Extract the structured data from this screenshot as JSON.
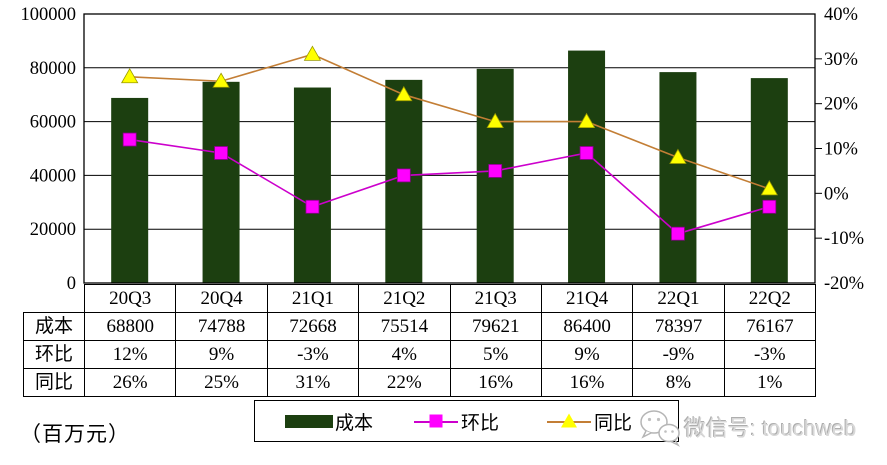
{
  "unit_label": "（百万元）",
  "watermark": {
    "icon": "wechat-icon",
    "text": "微信号: touchweb"
  },
  "legend": {
    "position": "bottom",
    "items": [
      {
        "label": "成本",
        "type": "bar",
        "color": "#1c3f10"
      },
      {
        "label": "环比",
        "type": "line-square",
        "line_color": "#cc00cc",
        "marker_color": "#ff00ff"
      },
      {
        "label": "同比",
        "type": "line-triangle",
        "line_color": "#c37e35",
        "marker_color": "#ffff00"
      }
    ]
  },
  "table": {
    "col_headers": [
      "20Q3",
      "20Q4",
      "21Q1",
      "21Q2",
      "21Q3",
      "21Q4",
      "22Q1",
      "22Q2"
    ],
    "rows": [
      {
        "header": "成本",
        "values": [
          "68800",
          "74788",
          "72668",
          "75514",
          "79621",
          "86400",
          "78397",
          "76167"
        ]
      },
      {
        "header": "环比",
        "values": [
          "12%",
          "9%",
          "-3%",
          "4%",
          "5%",
          "9%",
          "-9%",
          "-3%"
        ]
      },
      {
        "header": "同比",
        "values": [
          "26%",
          "25%",
          "31%",
          "22%",
          "16%",
          "16%",
          "8%",
          "1%"
        ]
      }
    ]
  },
  "chart_data": {
    "type": "combo",
    "categories": [
      "20Q3",
      "20Q4",
      "21Q1",
      "21Q2",
      "21Q3",
      "21Q4",
      "22Q1",
      "22Q2"
    ],
    "series": [
      {
        "name": "成本",
        "chart": "bar",
        "axis": "left",
        "color": "#1c3f10",
        "values": [
          68800,
          74788,
          72668,
          75514,
          79621,
          86400,
          78397,
          76167
        ]
      },
      {
        "name": "环比",
        "chart": "line",
        "axis": "right",
        "marker": "square",
        "line_color": "#cc00cc",
        "marker_color": "#ff00ff",
        "marker_stroke": "#8b008b",
        "values": [
          12,
          9,
          -3,
          4,
          5,
          9,
          -9,
          -3
        ],
        "unit": "%"
      },
      {
        "name": "同比",
        "chart": "line",
        "axis": "right",
        "marker": "triangle",
        "line_color": "#c37e35",
        "marker_color": "#ffff00",
        "marker_stroke": "#9a9a00",
        "values": [
          26,
          25,
          31,
          22,
          16,
          16,
          8,
          1
        ],
        "unit": "%"
      }
    ],
    "left_axis": {
      "min": 0,
      "max": 100000,
      "step": 20000,
      "labels": [
        "0",
        "20000",
        "40000",
        "60000",
        "80000",
        "100000"
      ]
    },
    "right_axis": {
      "min": -20,
      "max": 40,
      "step": 10,
      "labels": [
        "-20%",
        "-10%",
        "0%",
        "10%",
        "20%",
        "30%",
        "40%"
      ]
    },
    "grid": "horizontal",
    "legend_position": "bottom",
    "unit": "百万元"
  }
}
